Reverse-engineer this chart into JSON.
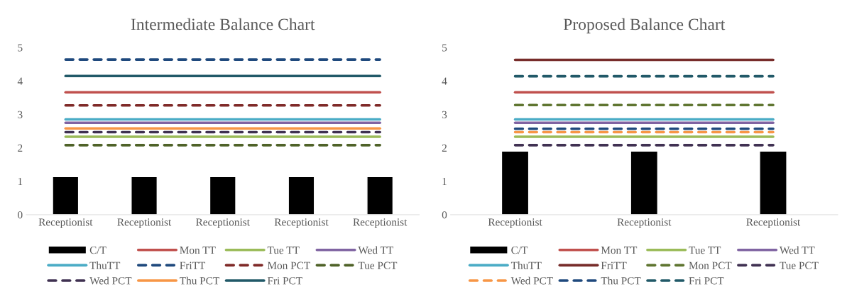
{
  "chart_data": [
    {
      "type": "bar",
      "title": "Intermediate Balance Chart",
      "categories": [
        "Receptionist",
        "Receptionist",
        "Receptionist",
        "Receptionist",
        "Receptionist"
      ],
      "ylim": [
        0,
        5
      ],
      "yticks": [
        0,
        1,
        2,
        3,
        4,
        5
      ],
      "grid": false,
      "legend": "bottom",
      "series": [
        {
          "name": "C/T",
          "color": "#000000",
          "values": [
            1.14,
            1.14,
            1.14,
            1.14,
            1.14
          ]
        },
        {
          "name": "Mon TT",
          "type": "line",
          "line_style": "solid",
          "color": "#c0504d",
          "values": [
            3.66,
            3.66,
            3.66,
            3.66,
            3.66
          ]
        },
        {
          "name": "Tue TT",
          "type": "line",
          "line_style": "solid",
          "color": "#9bbb59",
          "values": [
            2.33,
            2.33,
            2.33,
            2.33,
            2.33
          ]
        },
        {
          "name": "Wed TT",
          "type": "line",
          "line_style": "solid",
          "color": "#8064a2",
          "values": [
            2.75,
            2.75,
            2.75,
            2.75,
            2.75
          ]
        },
        {
          "name": "ThuTT",
          "type": "line",
          "line_style": "solid",
          "color": "#4bacc6",
          "values": [
            2.85,
            2.85,
            2.85,
            2.85,
            2.85
          ]
        },
        {
          "name": "FriTT",
          "type": "line",
          "line_style": "dashed",
          "color": "#1f497d",
          "values": [
            4.64,
            4.64,
            4.64,
            4.64,
            4.64
          ]
        },
        {
          "name": "Mon PCT",
          "type": "line",
          "line_style": "dashed",
          "color": "#7f2a28",
          "values": [
            3.27,
            3.27,
            3.27,
            3.27,
            3.27
          ]
        },
        {
          "name": "Tue PCT",
          "type": "line",
          "line_style": "dashed",
          "color": "#4f6228",
          "values": [
            2.08,
            2.08,
            2.08,
            2.08,
            2.08
          ]
        },
        {
          "name": "Wed PCT",
          "type": "line",
          "line_style": "dashed",
          "color": "#3f3151",
          "values": [
            2.47,
            2.47,
            2.47,
            2.47,
            2.47
          ]
        },
        {
          "name": "Thu PCT",
          "type": "line",
          "line_style": "solid",
          "color": "#f79646",
          "values": [
            2.58,
            2.58,
            2.58,
            2.58,
            2.58
          ]
        },
        {
          "name": "Fri PCT",
          "type": "line",
          "line_style": "solid",
          "color": "#215968",
          "values": [
            4.15,
            4.15,
            4.15,
            4.15,
            4.15
          ]
        }
      ]
    },
    {
      "type": "bar",
      "title": "Proposed Balance Chart",
      "categories": [
        "Receptionist",
        "Receptionist",
        "Receptionist"
      ],
      "ylim": [
        0,
        5
      ],
      "yticks": [
        0,
        1,
        2,
        3,
        4,
        5
      ],
      "grid": false,
      "legend": "bottom",
      "series": [
        {
          "name": "C/T",
          "color": "#000000",
          "values": [
            1.9,
            1.9,
            1.9
          ]
        },
        {
          "name": "Mon TT",
          "type": "line",
          "line_style": "solid",
          "color": "#c0504d",
          "values": [
            3.66,
            3.66,
            3.66
          ]
        },
        {
          "name": "Tue TT",
          "type": "line",
          "line_style": "solid",
          "color": "#9bbb59",
          "values": [
            2.33,
            2.33,
            2.33
          ]
        },
        {
          "name": "Wed TT",
          "type": "line",
          "line_style": "solid",
          "color": "#8064a2",
          "values": [
            2.75,
            2.75,
            2.75
          ]
        },
        {
          "name": "ThuTT",
          "type": "line",
          "line_style": "solid",
          "color": "#4bacc6",
          "values": [
            2.85,
            2.85,
            2.85
          ]
        },
        {
          "name": "FriTT",
          "type": "line",
          "line_style": "solid",
          "color": "#772c2a",
          "values": [
            4.63,
            4.63,
            4.63
          ]
        },
        {
          "name": "Mon PCT",
          "type": "line",
          "line_style": "dashed",
          "color": "#5f7530",
          "values": [
            3.28,
            3.28,
            3.28
          ]
        },
        {
          "name": "Tue PCT",
          "type": "line",
          "line_style": "dashed",
          "color": "#403152",
          "values": [
            2.08,
            2.08,
            2.08
          ]
        },
        {
          "name": "Wed PCT",
          "type": "line",
          "line_style": "dashed",
          "color": "#f79646",
          "values": [
            2.47,
            2.47,
            2.47
          ]
        },
        {
          "name": "Thu PCT",
          "type": "line",
          "line_style": "dashed",
          "color": "#1f497d",
          "values": [
            2.57,
            2.57,
            2.57
          ]
        },
        {
          "name": "Fri PCT",
          "type": "line",
          "line_style": "dashed",
          "color": "#215968",
          "values": [
            4.14,
            4.14,
            4.14
          ]
        }
      ]
    }
  ]
}
